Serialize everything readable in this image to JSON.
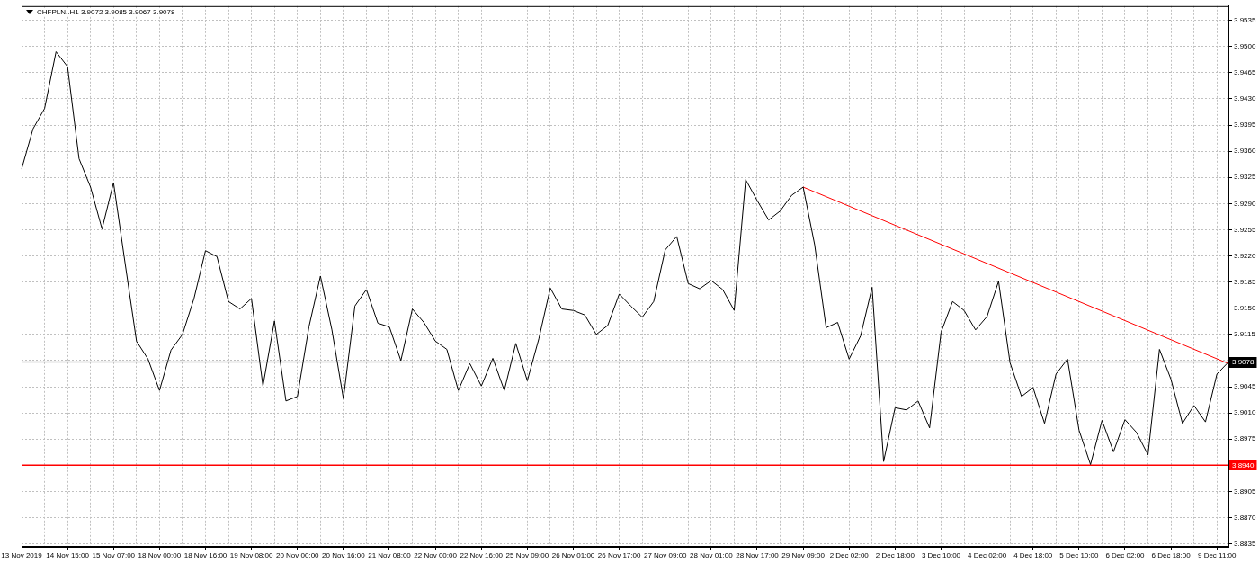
{
  "chart_data": {
    "type": "line",
    "title": "CHFPLN..H1 3.9072 3.9085 3.9067 3.9078",
    "categories": [
      "13 Nov 2019",
      null,
      null,
      null,
      "14 Nov 15:00",
      null,
      null,
      null,
      "15 Nov 07:00",
      null,
      null,
      null,
      "18 Nov 00:00",
      null,
      null,
      null,
      "18 Nov 16:00",
      null,
      null,
      null,
      "19 Nov 08:00",
      null,
      null,
      null,
      "20 Nov 00:00",
      null,
      null,
      null,
      "20 Nov 16:00",
      null,
      null,
      null,
      "21 Nov 08:00",
      null,
      null,
      null,
      "22 Nov 00:00",
      null,
      null,
      null,
      "22 Nov 16:00",
      null,
      null,
      null,
      "25 Nov 09:00",
      null,
      null,
      null,
      "26 Nov 01:00",
      null,
      null,
      null,
      "26 Nov 17:00",
      null,
      null,
      null,
      "27 Nov 09:00",
      null,
      null,
      null,
      "28 Nov 01:00",
      null,
      null,
      null,
      "28 Nov 17:00",
      null,
      null,
      null,
      "29 Nov 09:00",
      null,
      null,
      null,
      "2 Dec 02:00",
      null,
      null,
      null,
      "2 Dec 18:00",
      null,
      null,
      null,
      "3 Dec 10:00",
      null,
      null,
      null,
      "4 Dec 02:00",
      null,
      null,
      null,
      "4 Dec 18:00",
      null,
      null,
      null,
      "5 Dec 10:00",
      null,
      null,
      null,
      "6 Dec 02:00",
      null,
      null,
      null,
      "6 Dec 18:00",
      null,
      null,
      null,
      "9 Dec 11:00",
      null
    ],
    "series": [
      {
        "color": "#000000",
        "values": [
          3.9336,
          3.939,
          3.9417,
          3.9493,
          3.9473,
          3.935,
          3.9312,
          3.9256,
          3.9318,
          3.9211,
          3.9106,
          3.9082,
          3.904,
          3.9094,
          3.9115,
          3.9163,
          3.9227,
          3.9219,
          3.9159,
          3.9149,
          3.9163,
          3.9046,
          3.9133,
          3.9026,
          3.9032,
          3.9125,
          3.9193,
          3.9121,
          3.9029,
          3.9153,
          3.9175,
          3.913,
          3.9125,
          3.908,
          3.9149,
          3.9131,
          3.9106,
          3.9095,
          3.904,
          3.9076,
          3.9046,
          3.9083,
          3.904,
          3.9103,
          3.9053,
          3.9109,
          3.9177,
          3.9149,
          3.9147,
          3.9141,
          3.9115,
          3.9127,
          3.9169,
          3.9153,
          3.9138,
          3.9159,
          3.9228,
          3.9246,
          3.9183,
          3.9176,
          3.9187,
          3.9175,
          3.9147,
          3.9322,
          3.9294,
          3.9268,
          3.928,
          3.9301,
          3.9312,
          3.9235,
          3.9124,
          3.9131,
          3.9082,
          3.9113,
          3.9178,
          3.8945,
          3.9017,
          3.9014,
          3.9026,
          3.899,
          3.9118,
          3.9159,
          3.9147,
          3.9121,
          3.9139,
          3.9186,
          3.9077,
          3.9032,
          3.9044,
          3.8996,
          3.9062,
          3.9082,
          3.8987,
          3.8941,
          3.9,
          3.8958,
          3.9001,
          3.8984,
          3.8954,
          3.9095,
          3.9055,
          3.8996,
          3.902,
          3.8998,
          3.9062,
          3.9078
        ]
      },
      {
        "type": "line",
        "color": "#ff0000",
        "values": [
          null,
          null,
          null,
          null,
          null,
          null,
          null,
          null,
          null,
          null,
          null,
          null,
          null,
          null,
          null,
          null,
          null,
          null,
          null,
          null,
          null,
          null,
          null,
          null,
          null,
          null,
          null,
          null,
          null,
          null,
          null,
          null,
          null,
          null,
          null,
          null,
          null,
          null,
          null,
          null,
          null,
          null,
          null,
          null,
          null,
          null,
          null,
          null,
          null,
          null,
          null,
          null,
          null,
          null,
          null,
          null,
          null,
          null,
          null,
          null,
          null,
          null,
          null,
          null,
          null,
          null,
          null,
          null,
          3.9312,
          null,
          null,
          null,
          null,
          null,
          null,
          null,
          null,
          null,
          null,
          null,
          null,
          null,
          null,
          null,
          null,
          null,
          null,
          null,
          null,
          null,
          null,
          null,
          null,
          null,
          null,
          null,
          null,
          null,
          null,
          null,
          null,
          null,
          null,
          null,
          null,
          3.9076
        ]
      }
    ],
    "ylim": [
      3.8831,
      3.9554
    ],
    "yticks": [
      3.8835,
      {
        "value": 3.887,
        "label": "3.8870"
      },
      3.8905,
      {
        "value": 3.894,
        "label": null
      },
      3.8975,
      {
        "value": 3.901,
        "label": "3.9010"
      },
      3.9045,
      {
        "value": 3.908,
        "label": null
      },
      3.9115,
      {
        "value": 3.915,
        "label": "3.9150"
      },
      3.9185,
      {
        "value": 3.922,
        "label": "3.9220"
      },
      3.9255,
      {
        "value": 3.929,
        "label": "3.9290"
      },
      3.9325,
      {
        "value": 3.936,
        "label": "3.9360"
      },
      3.9395,
      {
        "value": 3.943,
        "label": "3.9430"
      },
      3.9465,
      {
        "value": 3.95,
        "label": "3.9500"
      },
      3.9535
    ],
    "ref_lines": [
      {
        "axis": "y",
        "value": 3.9078,
        "label": "3.9078",
        "color": "#c0c0c0"
      },
      {
        "axis": "y",
        "value": 3.894,
        "label": "3.8940",
        "color": "#ff0000"
      }
    ],
    "grid": true,
    "legend": false,
    "marker": "none",
    "line_style": "solid"
  }
}
